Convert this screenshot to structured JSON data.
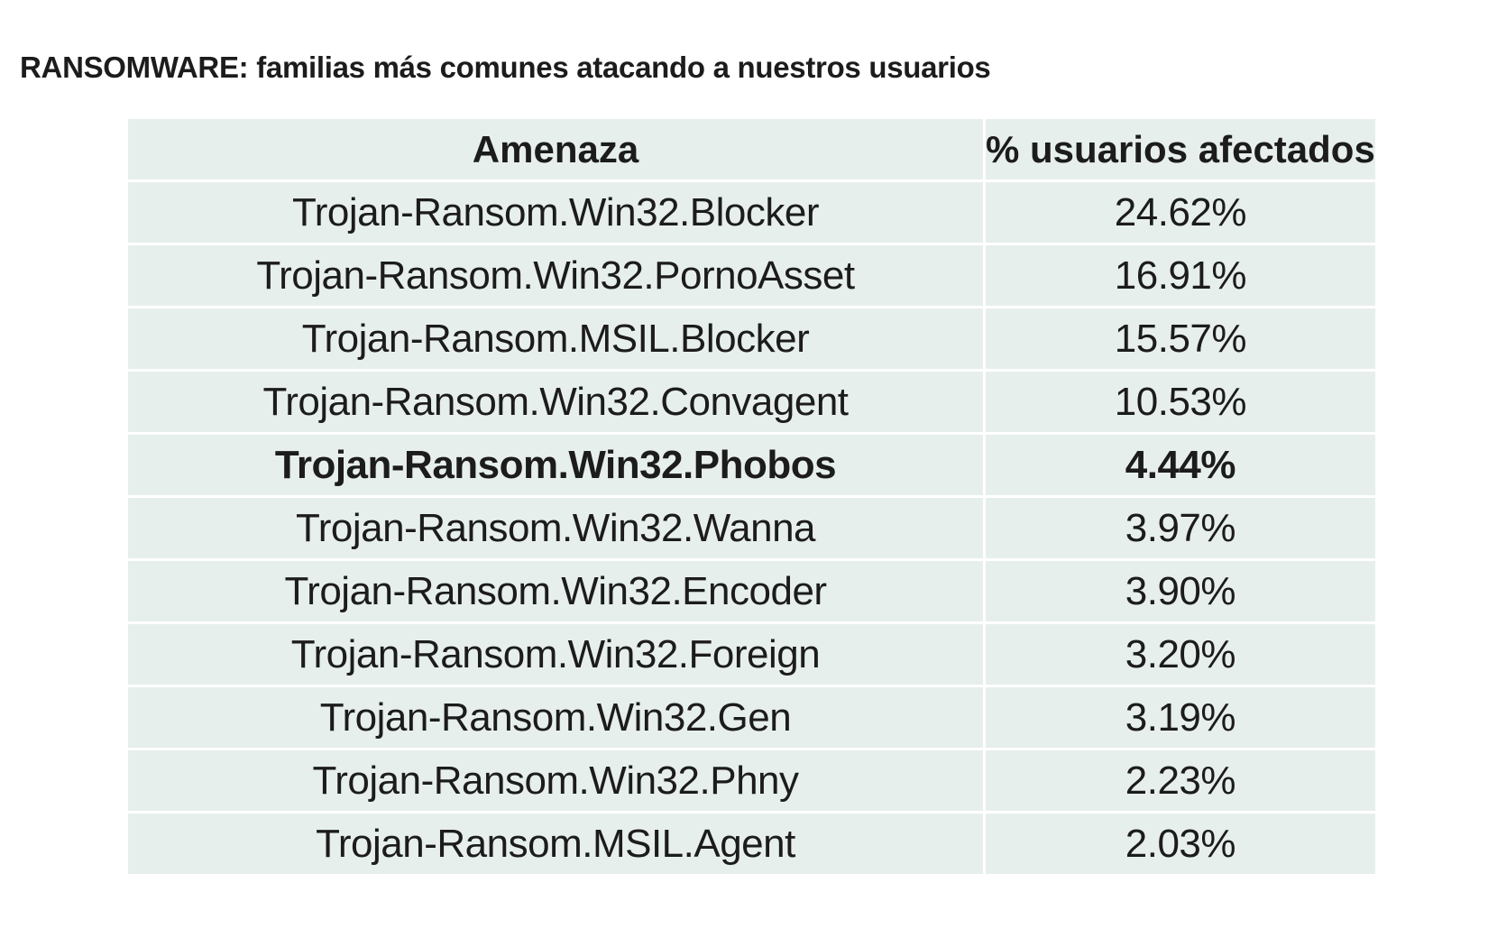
{
  "title": "RANSOMWARE: familias más comunes atacando a nuestros usuarios",
  "table": {
    "headers": [
      "Amenaza",
      "% usuarios afectados"
    ],
    "rows": [
      {
        "threat": "Trojan-Ransom.Win32.Blocker",
        "percent": "24.62%"
      },
      {
        "threat": "Trojan-Ransom.Win32.PornoAsset",
        "percent": "16.91%"
      },
      {
        "threat": "Trojan-Ransom.MSIL.Blocker",
        "percent": "15.57%"
      },
      {
        "threat": "Trojan-Ransom.Win32.Convagent",
        "percent": "10.53%"
      },
      {
        "threat": "Trojan-Ransom.Win32.Phobos",
        "percent": "4.44%",
        "highlight": true
      },
      {
        "threat": "Trojan-Ransom.Win32.Wanna",
        "percent": "3.97%"
      },
      {
        "threat": "Trojan-Ransom.Win32.Encoder",
        "percent": "3.90%"
      },
      {
        "threat": "Trojan-Ransom.Win32.Foreign",
        "percent": "3.20%"
      },
      {
        "threat": "Trojan-Ransom.Win32.Gen",
        "percent": "3.19%"
      },
      {
        "threat": "Trojan-Ransom.Win32.Phny",
        "percent": "2.23%"
      },
      {
        "threat": "Trojan-Ransom.MSIL.Agent",
        "percent": "2.03%"
      }
    ]
  },
  "colors": {
    "cell_bg": "#e7efec",
    "text": "#1c1c1c"
  }
}
